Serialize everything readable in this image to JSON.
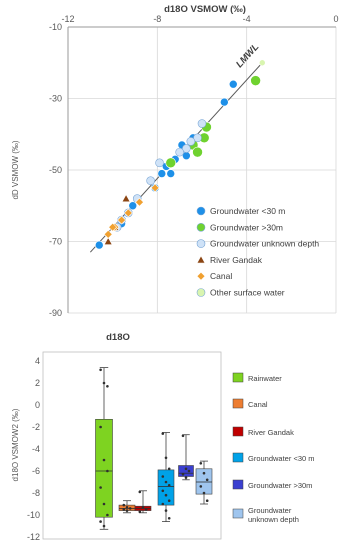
{
  "chart_data": [
    {
      "type": "scatter",
      "title": "d18O VSMOW (‰)",
      "xlabel": "",
      "ylabel": "dD VSMOW (‰)",
      "xlim": [
        -12,
        0
      ],
      "ylim": [
        -90,
        -10
      ],
      "xticks": [
        "-12",
        "-8",
        "-4",
        "0"
      ],
      "yticks": [
        "-10",
        "-30",
        "-50",
        "-70",
        "-90"
      ],
      "annotation": "LMWL",
      "lmwl": {
        "x": [
          -11,
          -3.3
        ],
        "y": [
          -73,
          -20
        ]
      },
      "series": [
        {
          "name": "Groundwater <30 m",
          "color": "#1e90e8",
          "marker": "circle",
          "x": [
            -4.6,
            -5.0,
            -6.4,
            -6.9,
            -6.7,
            -7.2,
            -7.6,
            -7.4,
            -7.8,
            -8.1,
            -9.1,
            -9.6,
            -10.6
          ],
          "y": [
            -26,
            -31,
            -41,
            -43,
            -46,
            -47,
            -49,
            -51,
            -51,
            -55,
            -60,
            -65,
            -71
          ]
        },
        {
          "name": "Groundwater >30m",
          "color": "#6fd22f",
          "marker": "circle",
          "x": [
            -3.6,
            -5.8,
            -5.9,
            -6.4,
            -6.2,
            -7.4
          ],
          "y": [
            -25,
            -38,
            -41,
            -43,
            -45,
            -48
          ]
        },
        {
          "name": "Groundwater unknown depth",
          "color": "#cfe2f7",
          "marker": "circle",
          "x": [
            -6.0,
            -6.2,
            -6.5,
            -6.7,
            -7.0,
            -7.9,
            -8.3,
            -8.9,
            -9.3,
            -9.6,
            -9.8
          ],
          "y": [
            -37,
            -41,
            -42,
            -44,
            -45,
            -48,
            -53,
            -58,
            -62,
            -64,
            -66
          ]
        },
        {
          "name": "River Gandak",
          "color": "#8b4513",
          "marker": "triangle",
          "x": [
            -9.4,
            -9.9,
            -10.2
          ],
          "y": [
            -58,
            -66,
            -70
          ]
        },
        {
          "name": "Canal",
          "color": "#f0a030",
          "marker": "diamond",
          "x": [
            -8.1,
            -8.8,
            -9.3,
            -9.6,
            -9.9,
            -10.2,
            -10.0
          ],
          "y": [
            -55,
            -59,
            -62,
            -64,
            -66,
            -68,
            -66
          ]
        },
        {
          "name": "Other surface water",
          "color": "#d9f5b0",
          "marker": "circle",
          "x": [
            -3.3
          ],
          "y": [
            -20
          ]
        }
      ]
    },
    {
      "type": "box",
      "title": "d18O",
      "xlabel": "",
      "ylabel": "d18O VSMOW2 (‰)",
      "ylim": [
        -12,
        4
      ],
      "yticks": [
        "4",
        "2",
        "0",
        "-2",
        "-4",
        "-6",
        "-8",
        "-10",
        "-12"
      ],
      "boxes": [
        {
          "name": "Rainwater",
          "color": "#7ed321",
          "min": -11.3,
          "q1": -10.2,
          "median": -6.0,
          "q3": -1.3,
          "max": 3.4,
          "points": [
            3.2,
            2.0,
            1.7,
            -2.0,
            -5.0,
            -6.0,
            -7.5,
            -9.0,
            -10.0,
            -10.6,
            -11.0
          ]
        },
        {
          "name": "Canal",
          "color": "#ed7d31",
          "min": -9.8,
          "q1": -9.6,
          "median": -9.4,
          "q3": -9.1,
          "max": -8.7,
          "points": [
            -9.1,
            -9.3,
            -9.4,
            -9.5,
            -9.6
          ]
        },
        {
          "name": "River Gandak",
          "color": "#c00000",
          "min": -9.8,
          "q1": -9.6,
          "median": -9.4,
          "q3": -9.2,
          "max": -7.8,
          "points": [
            -7.9,
            -9.3,
            -9.5,
            -9.7
          ]
        },
        {
          "name": "Groundwater <30 m",
          "color": "#00a2e8",
          "min": -10.6,
          "q1": -9.1,
          "median": -7.4,
          "q3": -5.9,
          "max": -2.5,
          "points": [
            -2.6,
            -4.8,
            -5.8,
            -6.5,
            -7.0,
            -7.3,
            -7.8,
            -8.2,
            -8.7,
            -9.0,
            -9.6,
            -10.3
          ]
        },
        {
          "name": "Groundwater >30m",
          "color": "#3a3fd0",
          "min": -6.8,
          "q1": -6.5,
          "median": -6.2,
          "q3": -5.5,
          "max": -2.7,
          "points": [
            -2.8,
            -5.8,
            -6.0,
            -6.3,
            -6.6
          ]
        },
        {
          "name": "Groundwater unknown depth",
          "color": "#9fc5ee",
          "min": -9.0,
          "q1": -8.1,
          "median": -7.0,
          "q3": -5.8,
          "max": -5.1,
          "points": [
            -5.3,
            -6.2,
            -6.8,
            -7.4,
            -8.0,
            -8.7
          ]
        }
      ]
    }
  ]
}
